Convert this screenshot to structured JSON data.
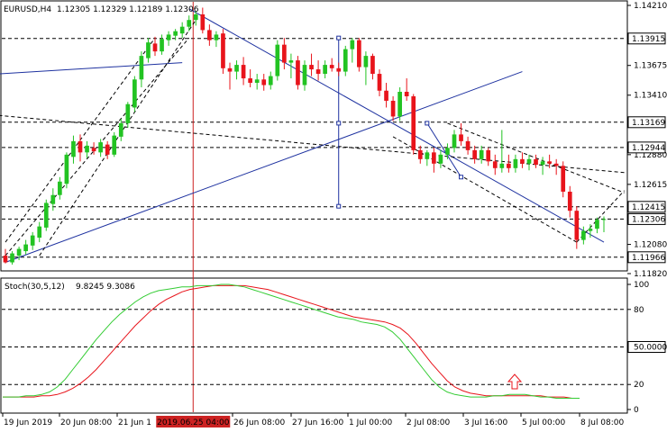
{
  "header": {
    "symbol": "EURUSD,H4",
    "ohlc": "1.12305 1.12329 1.12189 1.12306"
  },
  "stoch_header": {
    "name": "Stoch(30,5,12)",
    "values": "9.8245 9.3086"
  },
  "colors": {
    "bull": "#22c322",
    "bear": "#e8141b",
    "trend": "#1e32a0",
    "stoch_main": "#33cc33",
    "stoch_signal": "#e8141b",
    "cursor": "#cc2222",
    "arrow": "#e8141b"
  },
  "chart_data": [
    {
      "type": "candlestick",
      "symbol": "EURUSD",
      "timeframe": "H4",
      "ylim": [
        1.1182,
        1.1421
      ],
      "y_ticks": [
        "1.14210",
        "1.13675",
        "1.13410",
        "1.12880",
        "1.12615",
        "1.12080",
        "1.11820"
      ],
      "levels": [
        {
          "value": 1.13915,
          "label": "1.13915"
        },
        {
          "value": 1.13169,
          "label": "1.13169"
        },
        {
          "value": 1.12944,
          "label": "1.12944"
        },
        {
          "value": 1.12415,
          "label": "1.12415"
        },
        {
          "value": 1.12306,
          "label": "1.12306"
        },
        {
          "value": 1.11966,
          "label": "1.11966"
        }
      ],
      "x_labels": [
        "19 Jun 2019",
        "20 Jun 08:00",
        "21 Jun 1",
        "26 Jun 08:00",
        "27 Jun 16:00",
        "1 Jul 00:00",
        "2 Jul 08:00",
        "3 Jul 16:00",
        "5 Jul 00:00",
        "8 Jul 08:00"
      ],
      "cursor_label": "2019.06.25 04:00",
      "candles": [
        {
          "o": 1.1198,
          "h": 1.1204,
          "l": 1.1191,
          "c": 1.1192
        },
        {
          "o": 1.1192,
          "h": 1.1202,
          "l": 1.119,
          "c": 1.12
        },
        {
          "o": 1.1198,
          "h": 1.1206,
          "l": 1.1194,
          "c": 1.1204
        },
        {
          "o": 1.1202,
          "h": 1.1212,
          "l": 1.1199,
          "c": 1.1208
        },
        {
          "o": 1.1207,
          "h": 1.1219,
          "l": 1.1203,
          "c": 1.1216
        },
        {
          "o": 1.1214,
          "h": 1.1228,
          "l": 1.121,
          "c": 1.1224
        },
        {
          "o": 1.1223,
          "h": 1.1248,
          "l": 1.122,
          "c": 1.1245
        },
        {
          "o": 1.1244,
          "h": 1.1258,
          "l": 1.1238,
          "c": 1.1252
        },
        {
          "o": 1.1252,
          "h": 1.1268,
          "l": 1.1248,
          "c": 1.1264
        },
        {
          "o": 1.1262,
          "h": 1.129,
          "l": 1.1258,
          "c": 1.1288
        },
        {
          "o": 1.1286,
          "h": 1.1305,
          "l": 1.128,
          "c": 1.13
        },
        {
          "o": 1.13,
          "h": 1.1306,
          "l": 1.1282,
          "c": 1.129
        },
        {
          "o": 1.129,
          "h": 1.13,
          "l": 1.1285,
          "c": 1.1296
        },
        {
          "o": 1.1294,
          "h": 1.1299,
          "l": 1.1288,
          "c": 1.1291
        },
        {
          "o": 1.129,
          "h": 1.1302,
          "l": 1.1286,
          "c": 1.1299
        },
        {
          "o": 1.1297,
          "h": 1.13,
          "l": 1.1284,
          "c": 1.1288
        },
        {
          "o": 1.1288,
          "h": 1.1308,
          "l": 1.1286,
          "c": 1.1305
        },
        {
          "o": 1.1304,
          "h": 1.132,
          "l": 1.13,
          "c": 1.1316
        },
        {
          "o": 1.1316,
          "h": 1.1335,
          "l": 1.1312,
          "c": 1.1333
        },
        {
          "o": 1.133,
          "h": 1.1358,
          "l": 1.1326,
          "c": 1.1355
        },
        {
          "o": 1.1355,
          "h": 1.138,
          "l": 1.1348,
          "c": 1.1376
        },
        {
          "o": 1.1374,
          "h": 1.1392,
          "l": 1.137,
          "c": 1.1388
        },
        {
          "o": 1.1387,
          "h": 1.1393,
          "l": 1.1376,
          "c": 1.138
        },
        {
          "o": 1.138,
          "h": 1.1395,
          "l": 1.1377,
          "c": 1.1391
        },
        {
          "o": 1.139,
          "h": 1.1398,
          "l": 1.1385,
          "c": 1.1395
        },
        {
          "o": 1.1394,
          "h": 1.14,
          "l": 1.139,
          "c": 1.1398
        },
        {
          "o": 1.1396,
          "h": 1.1406,
          "l": 1.1392,
          "c": 1.1402
        },
        {
          "o": 1.1402,
          "h": 1.1412,
          "l": 1.1398,
          "c": 1.1408
        },
        {
          "o": 1.1408,
          "h": 1.1416,
          "l": 1.1403,
          "c": 1.1413
        },
        {
          "o": 1.1413,
          "h": 1.1419,
          "l": 1.1396,
          "c": 1.1399
        },
        {
          "o": 1.1399,
          "h": 1.1404,
          "l": 1.1385,
          "c": 1.139
        },
        {
          "o": 1.139,
          "h": 1.1398,
          "l": 1.1384,
          "c": 1.1395
        },
        {
          "o": 1.1396,
          "h": 1.14,
          "l": 1.136,
          "c": 1.1365
        },
        {
          "o": 1.1365,
          "h": 1.137,
          "l": 1.1346,
          "c": 1.1362
        },
        {
          "o": 1.1362,
          "h": 1.1372,
          "l": 1.1355,
          "c": 1.1368
        },
        {
          "o": 1.1368,
          "h": 1.1375,
          "l": 1.135,
          "c": 1.1356
        },
        {
          "o": 1.1356,
          "h": 1.1364,
          "l": 1.1348,
          "c": 1.1352
        },
        {
          "o": 1.1352,
          "h": 1.136,
          "l": 1.1346,
          "c": 1.1355
        },
        {
          "o": 1.1355,
          "h": 1.136,
          "l": 1.1345,
          "c": 1.135
        },
        {
          "o": 1.135,
          "h": 1.1362,
          "l": 1.1346,
          "c": 1.1358
        },
        {
          "o": 1.1358,
          "h": 1.139,
          "l": 1.1354,
          "c": 1.1386
        },
        {
          "o": 1.1386,
          "h": 1.1392,
          "l": 1.1364,
          "c": 1.137
        },
        {
          "o": 1.137,
          "h": 1.1378,
          "l": 1.1356,
          "c": 1.1372
        },
        {
          "o": 1.1372,
          "h": 1.1376,
          "l": 1.1346,
          "c": 1.135
        },
        {
          "o": 1.135,
          "h": 1.1372,
          "l": 1.1345,
          "c": 1.1368
        },
        {
          "o": 1.1368,
          "h": 1.1378,
          "l": 1.1358,
          "c": 1.1364
        },
        {
          "o": 1.1364,
          "h": 1.1372,
          "l": 1.1354,
          "c": 1.136
        },
        {
          "o": 1.136,
          "h": 1.1372,
          "l": 1.1356,
          "c": 1.1368
        },
        {
          "o": 1.1368,
          "h": 1.1374,
          "l": 1.1362,
          "c": 1.1365
        },
        {
          "o": 1.1365,
          "h": 1.137,
          "l": 1.1358,
          "c": 1.1362
        },
        {
          "o": 1.1362,
          "h": 1.1385,
          "l": 1.1358,
          "c": 1.1382
        },
        {
          "o": 1.1382,
          "h": 1.1392,
          "l": 1.137,
          "c": 1.139
        },
        {
          "o": 1.139,
          "h": 1.1392,
          "l": 1.1362,
          "c": 1.1366
        },
        {
          "o": 1.1366,
          "h": 1.138,
          "l": 1.135,
          "c": 1.1376
        },
        {
          "o": 1.1376,
          "h": 1.1378,
          "l": 1.1355,
          "c": 1.136
        },
        {
          "o": 1.136,
          "h": 1.1364,
          "l": 1.134,
          "c": 1.1345
        },
        {
          "o": 1.1345,
          "h": 1.1352,
          "l": 1.133,
          "c": 1.1336
        },
        {
          "o": 1.1336,
          "h": 1.134,
          "l": 1.1318,
          "c": 1.1322
        },
        {
          "o": 1.1322,
          "h": 1.1348,
          "l": 1.1318,
          "c": 1.1344
        },
        {
          "o": 1.1344,
          "h": 1.1356,
          "l": 1.1336,
          "c": 1.134
        },
        {
          "o": 1.134,
          "h": 1.1342,
          "l": 1.1288,
          "c": 1.1292
        },
        {
          "o": 1.1292,
          "h": 1.1296,
          "l": 1.128,
          "c": 1.1284
        },
        {
          "o": 1.1284,
          "h": 1.1292,
          "l": 1.1278,
          "c": 1.129
        },
        {
          "o": 1.129,
          "h": 1.1294,
          "l": 1.1272,
          "c": 1.128
        },
        {
          "o": 1.128,
          "h": 1.1292,
          "l": 1.1276,
          "c": 1.1288
        },
        {
          "o": 1.1288,
          "h": 1.1298,
          "l": 1.1284,
          "c": 1.1294
        },
        {
          "o": 1.1294,
          "h": 1.131,
          "l": 1.129,
          "c": 1.1306
        },
        {
          "o": 1.1306,
          "h": 1.1316,
          "l": 1.1296,
          "c": 1.13
        },
        {
          "o": 1.13,
          "h": 1.1304,
          "l": 1.1288,
          "c": 1.1292
        },
        {
          "o": 1.1292,
          "h": 1.1296,
          "l": 1.128,
          "c": 1.1284
        },
        {
          "o": 1.1284,
          "h": 1.1296,
          "l": 1.128,
          "c": 1.1292
        },
        {
          "o": 1.1292,
          "h": 1.1294,
          "l": 1.1278,
          "c": 1.1282
        },
        {
          "o": 1.1282,
          "h": 1.1288,
          "l": 1.127,
          "c": 1.1276
        },
        {
          "o": 1.1276,
          "h": 1.131,
          "l": 1.1272,
          "c": 1.128
        },
        {
          "o": 1.128,
          "h": 1.1288,
          "l": 1.1272,
          "c": 1.1276
        },
        {
          "o": 1.1276,
          "h": 1.1288,
          "l": 1.1272,
          "c": 1.1284
        },
        {
          "o": 1.1284,
          "h": 1.129,
          "l": 1.1276,
          "c": 1.128
        },
        {
          "o": 1.128,
          "h": 1.1288,
          "l": 1.1274,
          "c": 1.1284
        },
        {
          "o": 1.1284,
          "h": 1.1288,
          "l": 1.1276,
          "c": 1.1279
        },
        {
          "o": 1.1279,
          "h": 1.1286,
          "l": 1.127,
          "c": 1.1282
        },
        {
          "o": 1.1282,
          "h": 1.1288,
          "l": 1.1276,
          "c": 1.128
        },
        {
          "o": 1.128,
          "h": 1.1284,
          "l": 1.127,
          "c": 1.1278
        },
        {
          "o": 1.1278,
          "h": 1.1282,
          "l": 1.125,
          "c": 1.1255
        },
        {
          "o": 1.1255,
          "h": 1.126,
          "l": 1.1232,
          "c": 1.1238
        },
        {
          "o": 1.1238,
          "h": 1.1242,
          "l": 1.1204,
          "c": 1.1212
        },
        {
          "o": 1.1212,
          "h": 1.1224,
          "l": 1.1208,
          "c": 1.122
        },
        {
          "o": 1.122,
          "h": 1.1226,
          "l": 1.1214,
          "c": 1.1222
        },
        {
          "o": 1.1222,
          "h": 1.1232,
          "l": 1.1218,
          "c": 1.123
        },
        {
          "o": 1.12305,
          "h": 1.12329,
          "l": 1.12189,
          "c": 1.12306
        }
      ]
    },
    {
      "type": "line",
      "name": "Stoch(30,5,12)",
      "ylim": [
        0,
        100
      ],
      "y_ticks": [
        "100",
        "80",
        "50.0000",
        "20",
        "0"
      ],
      "levels": [
        80,
        50,
        20
      ],
      "series": [
        {
          "name": "main",
          "values": [
            10,
            10,
            10,
            11,
            11,
            12,
            14,
            18,
            24,
            32,
            40,
            48,
            56,
            63,
            70,
            76,
            81,
            86,
            90,
            93,
            95,
            96,
            97,
            98,
            98,
            99,
            99,
            99,
            100,
            100,
            99,
            98,
            96,
            94,
            92,
            90,
            88,
            86,
            84,
            82,
            80,
            78,
            76,
            74,
            73,
            72,
            70,
            69,
            68,
            66,
            62,
            56,
            48,
            40,
            32,
            24,
            18,
            14,
            12,
            11,
            10,
            10,
            10,
            11,
            11,
            12,
            12,
            12,
            11,
            10,
            10,
            9,
            9,
            9,
            9
          ]
        },
        {
          "name": "signal",
          "values": [
            10,
            10,
            10,
            10,
            10,
            11,
            11,
            12,
            14,
            17,
            21,
            26,
            32,
            39,
            46,
            53,
            60,
            67,
            73,
            79,
            84,
            88,
            91,
            94,
            96,
            97,
            98,
            99,
            99,
            99,
            99,
            99,
            98,
            97,
            96,
            94,
            92,
            90,
            88,
            86,
            84,
            82,
            80,
            78,
            76,
            74,
            73,
            72,
            71,
            70,
            68,
            65,
            60,
            53,
            45,
            37,
            30,
            23,
            18,
            15,
            13,
            12,
            11,
            11,
            11,
            11,
            11,
            11,
            11,
            11,
            10,
            10,
            10,
            9,
            9
          ]
        }
      ]
    }
  ]
}
